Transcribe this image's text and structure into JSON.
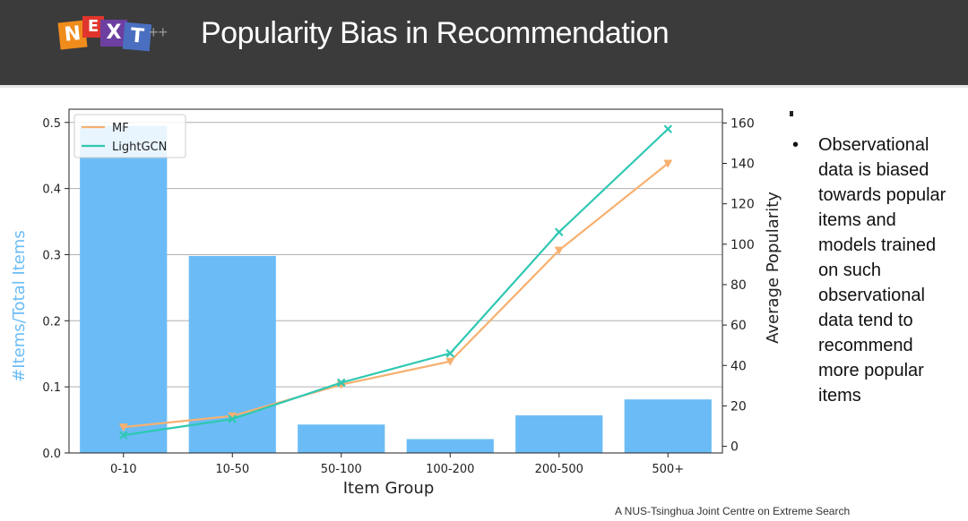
{
  "header": {
    "title": "Popularity Bias in Recommendation"
  },
  "logo": {
    "letters": [
      "N",
      "E",
      "X",
      "T"
    ],
    "suffix": "++",
    "colors": [
      "#f08c1c",
      "#e0352c",
      "#6d3fa0",
      "#4a6fc0"
    ]
  },
  "bullet": {
    "text": "Observational data is biased towards popular items and models trained on such observational data tend to recommend more popular items"
  },
  "footer": {
    "text": "A NUS-Tsinghua Joint Centre on Extreme Search"
  },
  "chart_data": {
    "type": "bar+line",
    "categories": [
      "0-10",
      "10-50",
      "50-100",
      "100-200",
      "200-500",
      "500+"
    ],
    "bars": {
      "values": [
        0.495,
        0.298,
        0.043,
        0.021,
        0.057,
        0.081
      ],
      "color": "#6bbcf6"
    },
    "series": [
      {
        "name": "MF",
        "values": [
          9.5,
          15,
          30.5,
          42,
          97,
          140
        ],
        "color": "#f7b070",
        "marker": "triangle-down"
      },
      {
        "name": "LightGCN",
        "values": [
          5.5,
          13.5,
          31.5,
          46,
          106,
          157
        ],
        "color": "#2fc8b2",
        "marker": "x"
      }
    ],
    "xlabel": "Item Group",
    "ylabel_left": "#Items/Total Items",
    "ylabel_right": "Average Popularity",
    "ylim_left": [
      0,
      0.52
    ],
    "yticks_left": [
      0.0,
      0.1,
      0.2,
      0.3,
      0.4,
      0.5
    ],
    "ylim_right": [
      -3.3,
      166.8
    ],
    "yticks_right": [
      0,
      20,
      40,
      60,
      80,
      100,
      120,
      140,
      160
    ],
    "grid": "horizontal",
    "legend": "top-left"
  }
}
